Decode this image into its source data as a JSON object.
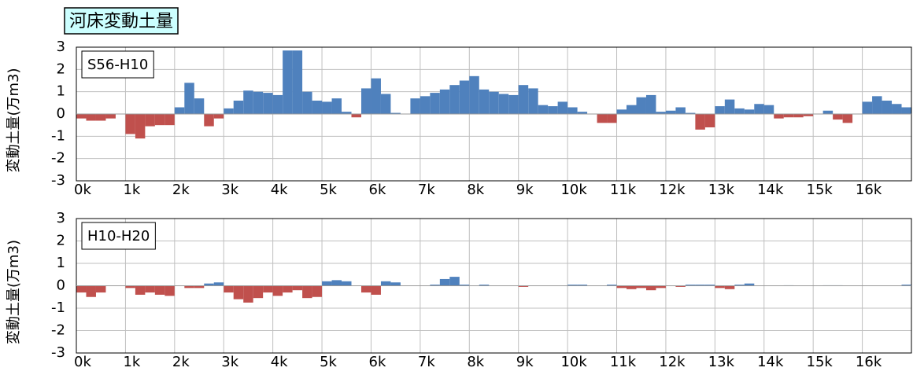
{
  "chart_data": [
    {
      "type": "bar",
      "title": "河床変動土量",
      "annotation": "S56-H10",
      "ylabel": "変動土量(万m3)",
      "positive_color": "#4f81bd",
      "negative_color": "#c0504d",
      "grid": true,
      "xlim": [
        0,
        17
      ],
      "ylim": [
        -3,
        3
      ],
      "yticks": [
        -3,
        -2,
        -1,
        0,
        1,
        2,
        3
      ],
      "xticks": [
        {
          "value": 0,
          "label": "0k"
        },
        {
          "value": 1,
          "label": "1k"
        },
        {
          "value": 2,
          "label": "2k"
        },
        {
          "value": 3,
          "label": "3k"
        },
        {
          "value": 4,
          "label": "4k"
        },
        {
          "value": 5,
          "label": "5k"
        },
        {
          "value": 6,
          "label": "6k"
        },
        {
          "value": 7,
          "label": "7k"
        },
        {
          "value": 8,
          "label": "8k"
        },
        {
          "value": 9,
          "label": "9k"
        },
        {
          "value": 10,
          "label": "10k"
        },
        {
          "value": 11,
          "label": "11k"
        },
        {
          "value": 12,
          "label": "12k"
        },
        {
          "value": 13,
          "label": "13k"
        },
        {
          "value": 14,
          "label": "14k"
        },
        {
          "value": 15,
          "label": "15k"
        },
        {
          "value": 16,
          "label": "16k"
        }
      ],
      "x": [
        0.1,
        0.3,
        0.5,
        0.7,
        0.9,
        1.1,
        1.3,
        1.5,
        1.7,
        1.9,
        2.1,
        2.3,
        2.5,
        2.7,
        2.9,
        3.1,
        3.3,
        3.5,
        3.7,
        3.9,
        4.1,
        4.3,
        4.5,
        4.7,
        4.9,
        5.1,
        5.3,
        5.5,
        5.7,
        5.9,
        6.1,
        6.3,
        6.5,
        6.7,
        6.9,
        7.1,
        7.3,
        7.5,
        7.7,
        7.9,
        8.1,
        8.3,
        8.5,
        8.7,
        8.9,
        9.1,
        9.3,
        9.5,
        9.7,
        9.9,
        10.1,
        10.3,
        10.5,
        10.7,
        10.9,
        11.1,
        11.3,
        11.5,
        11.7,
        11.9,
        12.1,
        12.3,
        12.5,
        12.7,
        12.9,
        13.1,
        13.3,
        13.5,
        13.7,
        13.9,
        14.1,
        14.3,
        14.5,
        14.7,
        14.9,
        15.1,
        15.3,
        15.5,
        15.7,
        15.9,
        16.1,
        16.3,
        16.5,
        16.7,
        16.9
      ],
      "values": [
        -0.2,
        -0.3,
        -0.3,
        -0.2,
        0,
        -0.9,
        -1.1,
        -0.55,
        -0.5,
        -0.5,
        0.3,
        1.4,
        0.7,
        -0.55,
        -0.2,
        0.25,
        0.6,
        1.05,
        1.0,
        0.95,
        0.85,
        2.85,
        2.85,
        1.0,
        0.6,
        0.55,
        0.7,
        0.1,
        -0.15,
        1.15,
        1.6,
        0.9,
        0.05,
        0,
        0.7,
        0.8,
        0.95,
        1.1,
        1.3,
        1.5,
        1.7,
        1.1,
        1.0,
        0.9,
        0.85,
        1.3,
        1.15,
        0.4,
        0.35,
        0.55,
        0.3,
        0.1,
        0,
        -0.4,
        -0.4,
        0.2,
        0.4,
        0.75,
        0.85,
        0.1,
        0.15,
        0.3,
        0.05,
        -0.7,
        -0.6,
        0.35,
        0.65,
        0.25,
        0.2,
        0.45,
        0.4,
        -0.2,
        -0.15,
        -0.15,
        -0.1,
        0,
        0.15,
        -0.25,
        -0.4,
        0,
        0.55,
        0.8,
        0.6,
        0.45,
        0.3
      ]
    },
    {
      "type": "bar",
      "annotation": "H10-H20",
      "ylabel": "変動土量(万m3)",
      "positive_color": "#4f81bd",
      "negative_color": "#c0504d",
      "grid": true,
      "xlim": [
        0,
        17
      ],
      "ylim": [
        -3,
        3
      ],
      "yticks": [
        -3,
        -2,
        -1,
        0,
        1,
        2,
        3
      ],
      "xticks": [
        {
          "value": 0,
          "label": "0k"
        },
        {
          "value": 1,
          "label": "1k"
        },
        {
          "value": 2,
          "label": "2k"
        },
        {
          "value": 3,
          "label": "3k"
        },
        {
          "value": 4,
          "label": "4k"
        },
        {
          "value": 5,
          "label": "5k"
        },
        {
          "value": 6,
          "label": "6k"
        },
        {
          "value": 7,
          "label": "7k"
        },
        {
          "value": 8,
          "label": "8k"
        },
        {
          "value": 9,
          "label": "9k"
        },
        {
          "value": 10,
          "label": "10k"
        },
        {
          "value": 11,
          "label": "11k"
        },
        {
          "value": 12,
          "label": "12k"
        },
        {
          "value": 13,
          "label": "13k"
        },
        {
          "value": 14,
          "label": "14k"
        },
        {
          "value": 15,
          "label": "15k"
        },
        {
          "value": 16,
          "label": "16k"
        }
      ],
      "x": [
        0.1,
        0.3,
        0.5,
        0.7,
        0.9,
        1.1,
        1.3,
        1.5,
        1.7,
        1.9,
        2.1,
        2.3,
        2.5,
        2.7,
        2.9,
        3.1,
        3.3,
        3.5,
        3.7,
        3.9,
        4.1,
        4.3,
        4.5,
        4.7,
        4.9,
        5.1,
        5.3,
        5.5,
        5.7,
        5.9,
        6.1,
        6.3,
        6.5,
        6.7,
        6.9,
        7.1,
        7.3,
        7.5,
        7.7,
        7.9,
        8.1,
        8.3,
        8.5,
        8.7,
        8.9,
        9.1,
        9.3,
        9.5,
        9.7,
        9.9,
        10.1,
        10.3,
        10.5,
        10.7,
        10.9,
        11.1,
        11.3,
        11.5,
        11.7,
        11.9,
        12.1,
        12.3,
        12.5,
        12.7,
        12.9,
        13.1,
        13.3,
        13.5,
        13.7,
        13.9,
        14.1,
        14.3,
        14.5,
        14.7,
        14.9,
        15.1,
        15.3,
        15.5,
        15.7,
        15.9,
        16.1,
        16.3,
        16.5,
        16.7,
        16.9
      ],
      "values": [
        -0.3,
        -0.5,
        -0.3,
        0,
        0,
        -0.1,
        -0.4,
        -0.3,
        -0.4,
        -0.45,
        0,
        -0.1,
        -0.1,
        0.1,
        0.15,
        -0.3,
        -0.6,
        -0.75,
        -0.55,
        -0.3,
        -0.45,
        -0.3,
        -0.2,
        -0.55,
        -0.5,
        0.2,
        0.25,
        0.2,
        0,
        -0.3,
        -0.4,
        0.2,
        0.15,
        0,
        0,
        0,
        0.05,
        0.3,
        0.4,
        0.05,
        0,
        0.05,
        0,
        0,
        0,
        -0.05,
        0,
        0,
        0,
        0,
        0.05,
        0.05,
        0,
        0,
        0.05,
        -0.1,
        -0.15,
        -0.1,
        -0.2,
        -0.1,
        0,
        -0.05,
        0.05,
        0.05,
        0.05,
        -0.1,
        -0.15,
        0.05,
        0.1,
        0,
        0,
        0,
        0.02,
        0,
        0,
        0,
        0.02,
        0.02,
        0,
        0,
        0,
        0,
        0,
        0,
        0.05
      ]
    }
  ]
}
